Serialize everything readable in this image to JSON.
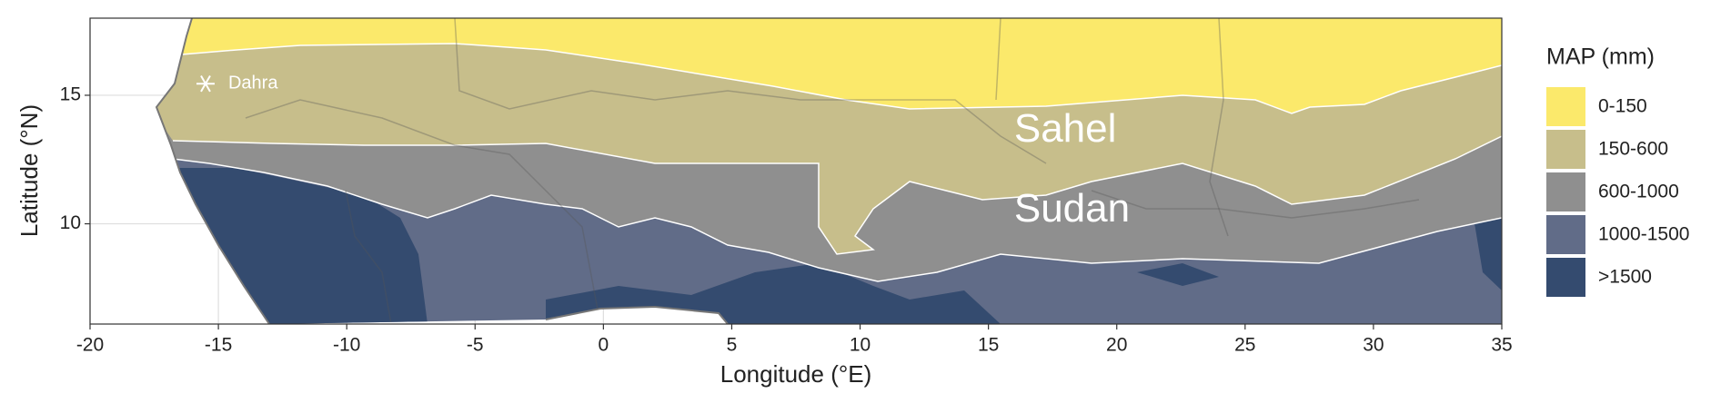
{
  "chart_data": {
    "type": "map",
    "xlabel": "Longitude (°E)",
    "ylabel": "Latitude (°N)",
    "xlim": [
      -20,
      35
    ],
    "ylim": [
      6.1,
      18
    ],
    "xticks": [
      -20,
      -15,
      -10,
      -5,
      0,
      5,
      10,
      15,
      20,
      25,
      30,
      35
    ],
    "yticks": [
      10,
      15
    ],
    "grid": true,
    "legend": {
      "title": "MAP (mm)",
      "position": "right",
      "entries": [
        {
          "label": "0-150",
          "color": "#fbe96b"
        },
        {
          "label": "150-600",
          "color": "#c7be8b"
        },
        {
          "label": "600-1000",
          "color": "#8f8f8f"
        },
        {
          "label": "1000-1500",
          "color": "#616c88"
        },
        {
          "label": ">1500",
          "color": "#344b6f"
        }
      ]
    },
    "regions": [
      {
        "text": "Sahel",
        "lon": 16.0,
        "lat": 13.6
      },
      {
        "text": "Sudan",
        "lon": 16.0,
        "lat": 10.5
      }
    ],
    "points": [
      {
        "text": "Dahra",
        "lon": -15.5,
        "lat": 15.45
      }
    ]
  }
}
